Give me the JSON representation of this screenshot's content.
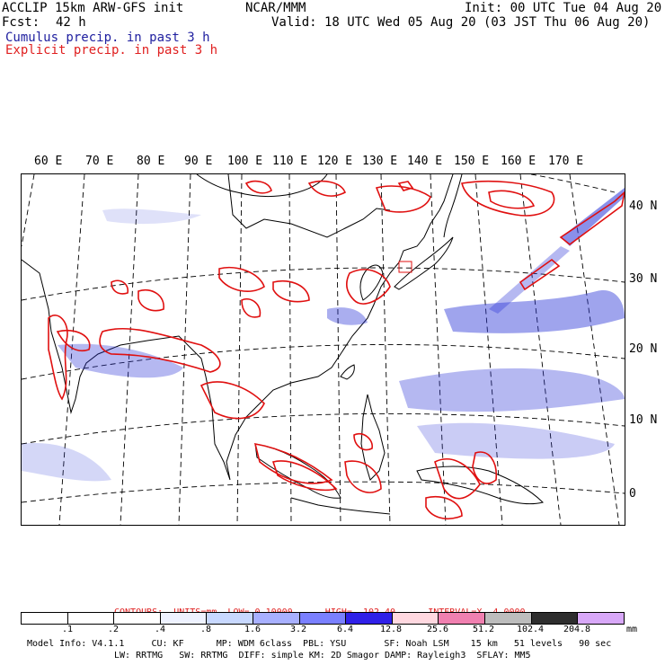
{
  "header": {
    "title_left": "ACCLIP 15km ARW-GFS init",
    "center": "NCAR/MMM",
    "init": "Init: 00 UTC Tue 04 Aug 20",
    "fcst_label": "Fcst:",
    "fcst_value": "42 h",
    "valid": "Valid: 18 UTC Wed 05 Aug 20 (03 JST Thu 06 Aug 20)",
    "cumulus": "Cumulus precip. in past 3 h",
    "explicit": "Explicit precip. in past 3 h"
  },
  "map": {
    "lon_labels": [
      "60 E",
      "70 E",
      "80 E",
      "90 E",
      "100 E",
      "110 E",
      "120 E",
      "130 E",
      "140 E",
      "150 E",
      "160 E",
      "170 E"
    ],
    "lat_labels": [
      "40 N",
      "30 N",
      "20 N",
      "10 N",
      "0"
    ],
    "colors": {
      "cumulus": "#2a35d8",
      "explicit": "#e01010",
      "land": "#000000"
    }
  },
  "legend": {
    "contours": "CONTOURS:  UNITS=mm  LOW= 0.10000      HIGH=  102.40      INTERVAL=X  4.0000",
    "ticks": [
      ".1",
      ".2",
      ".4",
      ".8",
      "1.6",
      "3.2",
      "6.4",
      "12.8",
      "25.6",
      "51.2",
      "102.4",
      "204.8"
    ],
    "units": "mm",
    "colors": [
      "#ffffff",
      "#ffffff",
      "#ffffff",
      "#eef2ff",
      "#c8d8ff",
      "#a8b0ff",
      "#7a80ff",
      "#3020e8",
      "#ffd8e0",
      "#f080b0",
      "#bdbdbd",
      "#2e2e2e",
      "#d8a8f8"
    ]
  },
  "model_info": {
    "line1": "Model Info: V4.1.1     CU: KF      MP: WDM 6class  PBL: YSU       SF: Noah LSM    15 km   51 levels   90 sec",
    "line2": "LW: RRTMG   SW: RRTMG  DIFF: simple KM: 2D Smagor DAMP: Rayleigh3  SFLAY: MM5"
  }
}
